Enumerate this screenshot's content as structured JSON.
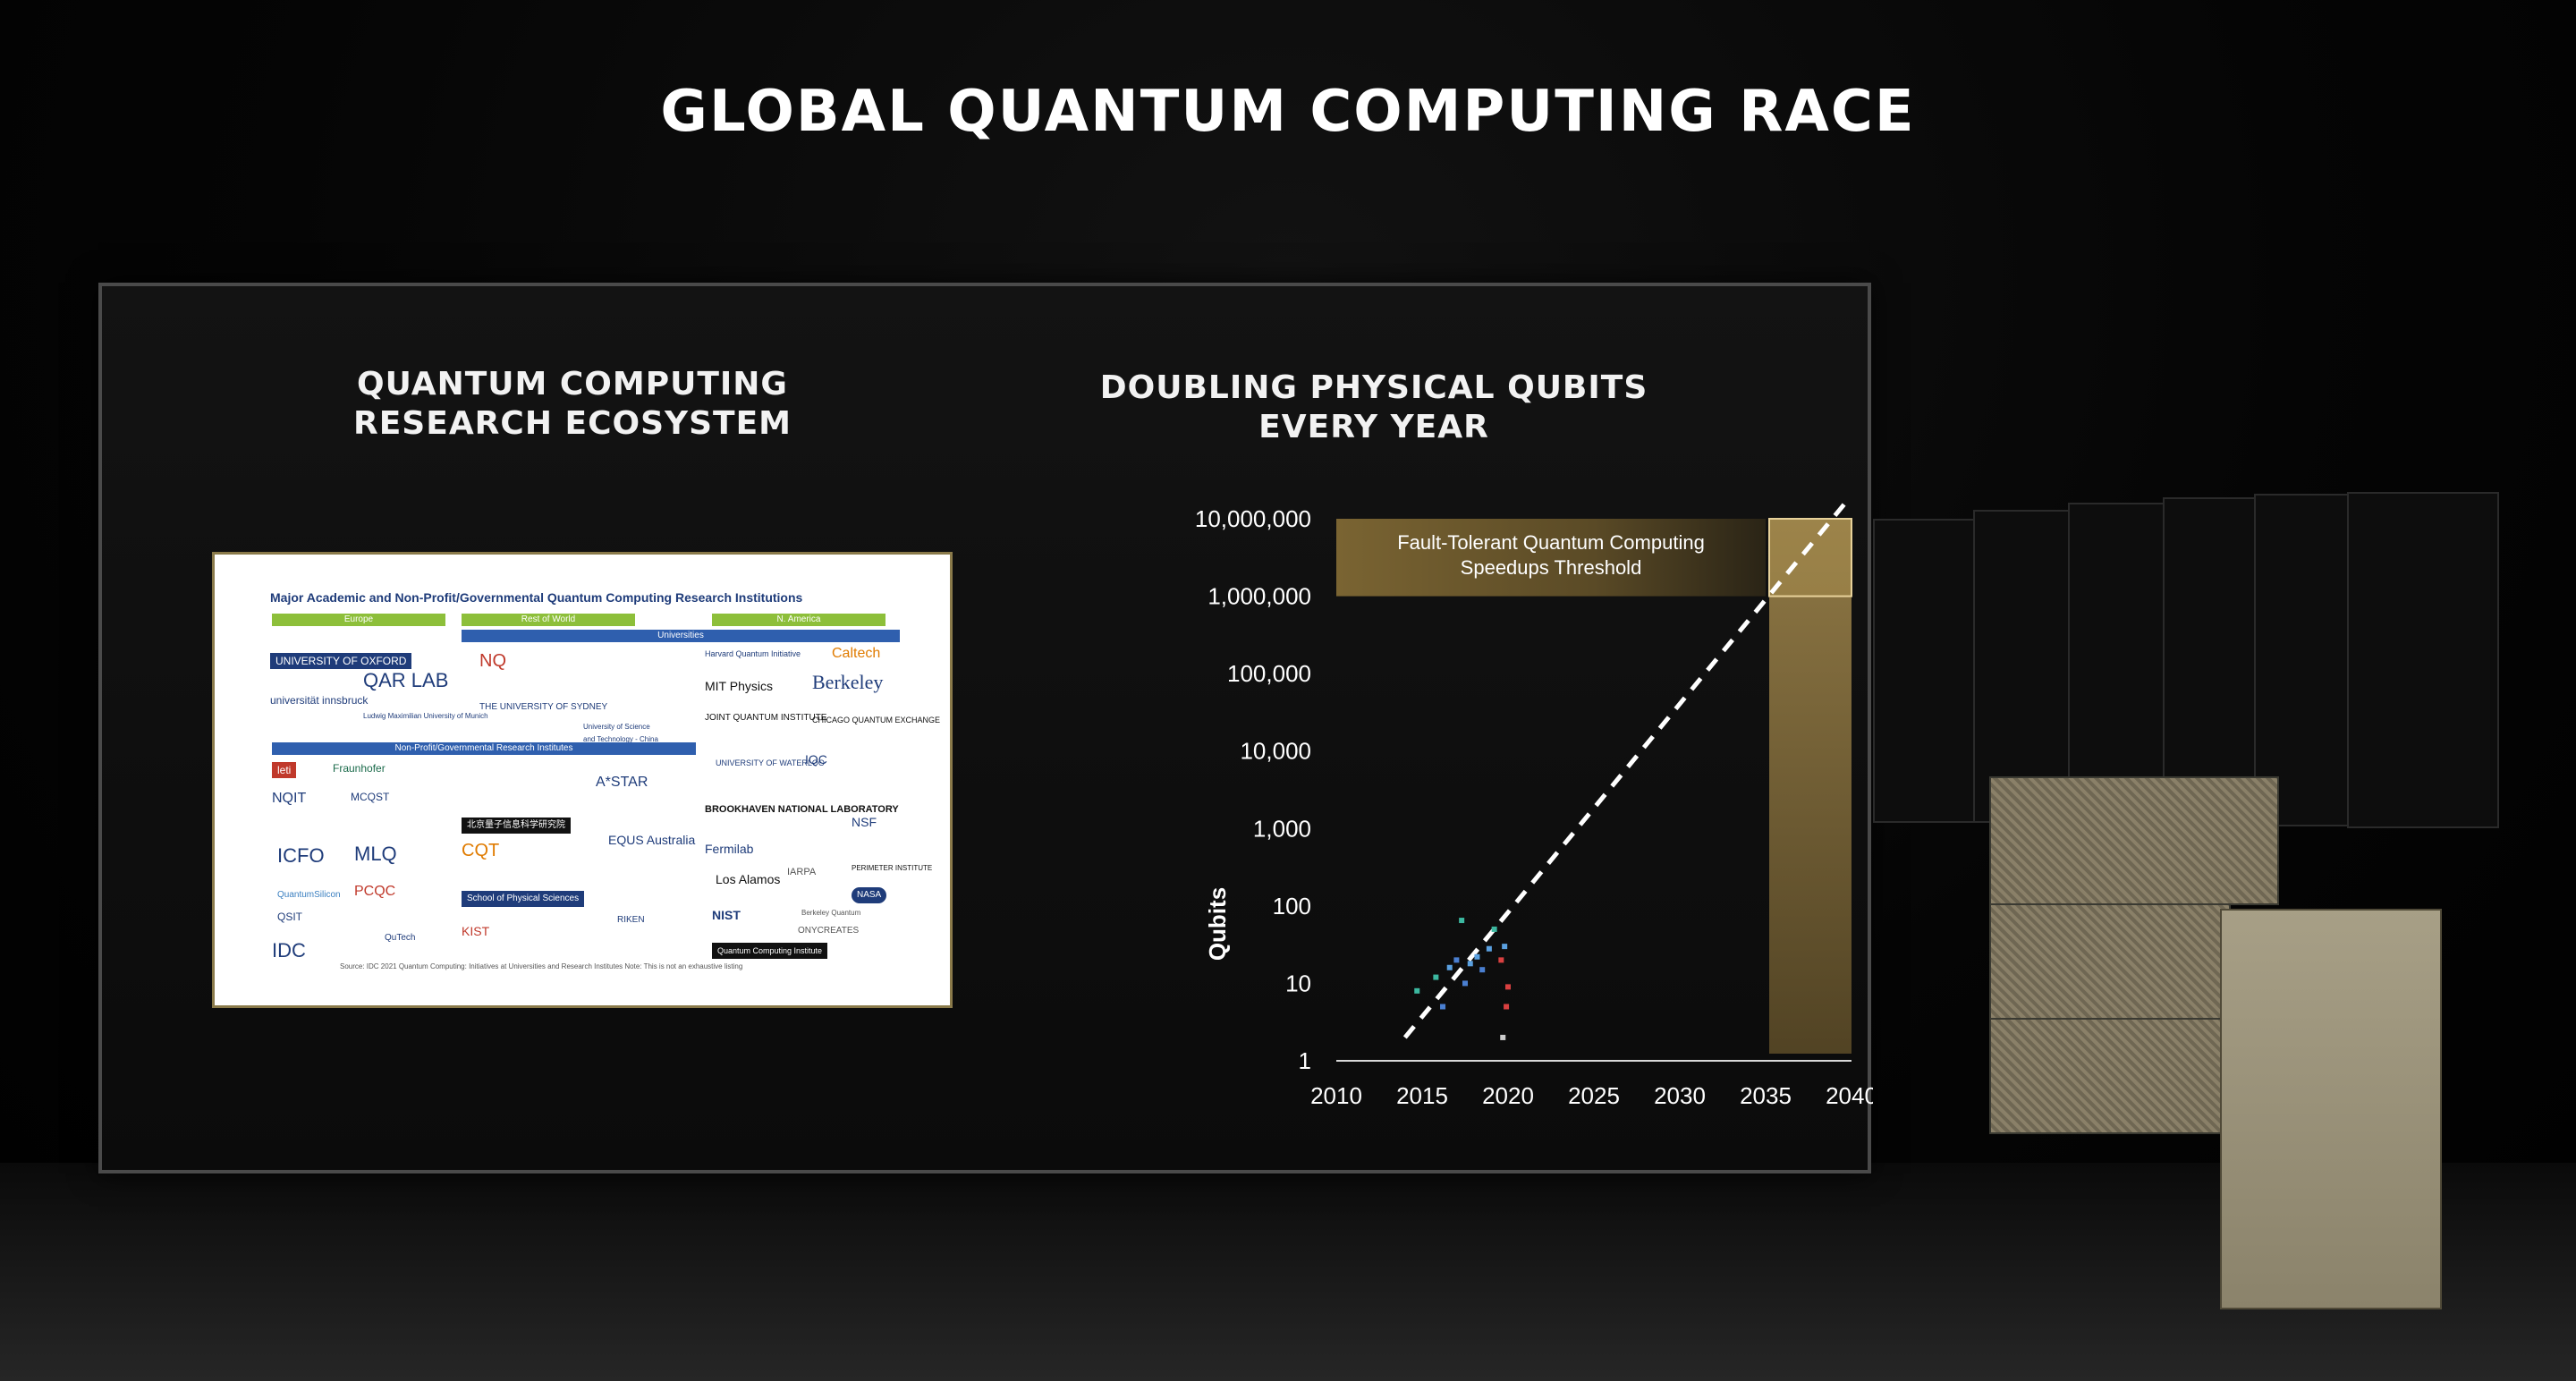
{
  "slide": {
    "title": "GLOBAL QUANTUM COMPUTING RACE",
    "left_panel": {
      "title_line1": "QUANTUM COMPUTING",
      "title_line2": "RESEARCH ECOSYSTEM"
    },
    "right_panel": {
      "title_line1": "DOUBLING PHYSICAL QUBITS",
      "title_line2": "EVERY YEAR"
    }
  },
  "ecosystem": {
    "heading": "Major Academic and Non-Profit/Governmental Quantum Computing Research Institutions",
    "regions": [
      "Europe",
      "Rest of World",
      "N. America"
    ],
    "universities_label": "Universities",
    "nonprofit_label": "Non-Profit/Governmental Research Institutes",
    "europe_universities": [
      "UNIVERSITY OF OXFORD",
      "QAR LAB",
      "universität innsbruck",
      "Ludwig Maximilian University of Munich"
    ],
    "row_universities": [
      "NQ",
      "THE UNIVERSITY OF SYDNEY",
      "University of Science and Technology - China"
    ],
    "na_universities": [
      "Harvard Quantum Initiative",
      "Caltech",
      "MIT Physics",
      "Berkeley",
      "JOINT QUANTUM INSTITUTE",
      "CHICAGO QUANTUM EXCHANGE",
      "UNIVERSITY OF WATERLOO",
      "IQC"
    ],
    "europe_institutes": [
      "leti",
      "Fraunhofer",
      "NQIT",
      "MCQST",
      "ICFO",
      "MLQ",
      "QuantumSilicon",
      "PCQC",
      "QSIT",
      "QuTech",
      "IDC"
    ],
    "row_institutes": [
      "北京量子信息科学研究院",
      "CQT",
      "A*STAR",
      "EQUS Australia",
      "School of Physical Sciences",
      "KIST",
      "RIKEN"
    ],
    "na_institutes": [
      "BROOKHAVEN NATIONAL LABORATORY",
      "NSF",
      "Fermilab",
      "IARPA",
      "PERIMETER INSTITUTE",
      "Los Alamos",
      "Berkeley Quantum",
      "NASA",
      "NIST",
      "ONYCREATES",
      "Quantum Computing Institute"
    ],
    "source": "Source: IDC 2021 Quantum Computing: Initiatives at Universities and Research Institutes Note: This is not an exhaustive listing"
  },
  "chart_data": {
    "type": "scatter",
    "title": "DOUBLING PHYSICAL QUBITS EVERY YEAR",
    "ylabel": "Qubits",
    "xlabel": "",
    "xlim": [
      2010,
      2040
    ],
    "ylim": [
      1,
      10000000
    ],
    "yscale": "log",
    "x_ticks": [
      "2010",
      "2015",
      "2020",
      "2025",
      "2030",
      "2035",
      "2040"
    ],
    "y_ticks": [
      "1",
      "10",
      "100",
      "1,000",
      "10,000",
      "100,000",
      "1,000,000",
      "10,000,000"
    ],
    "threshold": {
      "label_line1": "Fault-Tolerant Quantum Computing",
      "label_line2": "Speedups Threshold",
      "y_min": 1000000,
      "y_max": 10000000,
      "x_band": [
        2035,
        2040
      ],
      "color": "#b89a52"
    },
    "trend": {
      "x": [
        2014,
        2040
      ],
      "y": [
        2,
        20000000
      ],
      "style": "dashed",
      "color": "#ffffff"
    },
    "points": [
      {
        "x": 2014.7,
        "y": 8,
        "color": "#3cb8a0"
      },
      {
        "x": 2015.8,
        "y": 12,
        "color": "#3cb8a0"
      },
      {
        "x": 2016.2,
        "y": 5,
        "color": "#4a7fd1"
      },
      {
        "x": 2016.6,
        "y": 16,
        "color": "#5aa0e0"
      },
      {
        "x": 2017.0,
        "y": 20,
        "color": "#4a7fd1"
      },
      {
        "x": 2017.3,
        "y": 65,
        "color": "#3cb8a0"
      },
      {
        "x": 2017.5,
        "y": 10,
        "color": "#4a7fd1"
      },
      {
        "x": 2017.8,
        "y": 18,
        "color": "#5aa0e0"
      },
      {
        "x": 2018.2,
        "y": 22,
        "color": "#5aa0e0"
      },
      {
        "x": 2018.5,
        "y": 15,
        "color": "#4a7fd1"
      },
      {
        "x": 2018.9,
        "y": 28,
        "color": "#5aa0e0"
      },
      {
        "x": 2019.2,
        "y": 50,
        "color": "#3cb8a0"
      },
      {
        "x": 2019.6,
        "y": 20,
        "color": "#d94040"
      },
      {
        "x": 2019.8,
        "y": 30,
        "color": "#5aa0e0"
      },
      {
        "x": 2019.9,
        "y": 5,
        "color": "#d94040"
      },
      {
        "x": 2019.7,
        "y": 2,
        "color": "#cccccc"
      },
      {
        "x": 2020.0,
        "y": 9,
        "color": "#d94040"
      }
    ]
  }
}
